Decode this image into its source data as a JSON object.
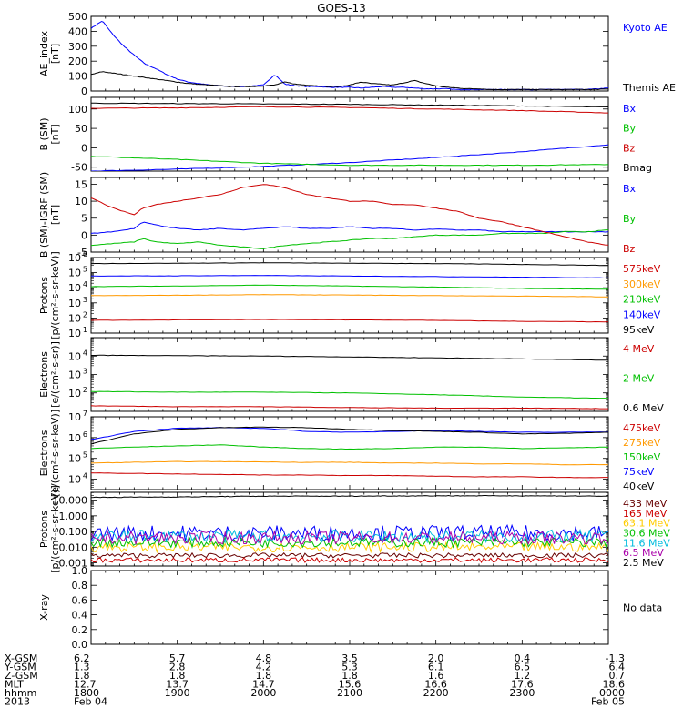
{
  "title": "GOES-13",
  "x_axis_labels": {
    "rows": [
      {
        "label": "X-GSM",
        "values": [
          "6.2",
          "5.7",
          "4.8",
          "3.5",
          "2.0",
          "0.4",
          "-1.3"
        ]
      },
      {
        "label": "Y-GSM",
        "values": [
          "1.3",
          "2.8",
          "4.2",
          "5.3",
          "6.1",
          "6.5",
          "6.4"
        ]
      },
      {
        "label": "Z-GSM",
        "values": [
          "1.8",
          "1.8",
          "1.8",
          "1.8",
          "1.6",
          "1.2",
          "0.7"
        ]
      },
      {
        "label": "MLT",
        "values": [
          "12.7",
          "13.7",
          "14.7",
          "15.6",
          "16.6",
          "17.6",
          "18.6"
        ]
      },
      {
        "label": "hhmm",
        "values": [
          "1800",
          "1900",
          "2000",
          "2100",
          "2200",
          "2300",
          "0000"
        ]
      }
    ],
    "year": "2013",
    "date_start": "Feb 04",
    "date_end": "Feb 05"
  },
  "chart_data": [
    {
      "type": "line",
      "ylabel": [
        "AE_index",
        "[nT]"
      ],
      "ylim": [
        0,
        500
      ],
      "yticks": [
        "500",
        "400",
        "300",
        "200",
        "100",
        "0"
      ],
      "x_hours": [
        0,
        0.13,
        0.25,
        0.38,
        0.5,
        0.63,
        0.75,
        0.88,
        1,
        1.13,
        1.25,
        1.38,
        1.5,
        1.63,
        1.75,
        1.88,
        2,
        2.13,
        2.25,
        2.38,
        2.5,
        2.63,
        2.75,
        2.88,
        3,
        3.13,
        3.25,
        3.38,
        3.5,
        3.63,
        3.75,
        3.88,
        4,
        4.13,
        4.25,
        4.38,
        4.5,
        4.63,
        4.75,
        4.88,
        5,
        5.13,
        5.25,
        5.38,
        5.5,
        5.63,
        5.75,
        5.88,
        6
      ],
      "series": [
        {
          "name": "Kyoto AE",
          "color": "#0000ff",
          "values": [
            420,
            470,
            380,
            300,
            240,
            180,
            150,
            110,
            80,
            60,
            50,
            40,
            35,
            30,
            30,
            35,
            40,
            110,
            45,
            35,
            30,
            30,
            25,
            25,
            25,
            20,
            25,
            30,
            25,
            25,
            20,
            15,
            15,
            15,
            10,
            10,
            10,
            10,
            10,
            10,
            10,
            10,
            10,
            10,
            10,
            10,
            10,
            15,
            20
          ]
        },
        {
          "name": "Themis AE",
          "color": "#000000",
          "values": [
            110,
            130,
            120,
            110,
            100,
            90,
            80,
            70,
            60,
            50,
            45,
            40,
            35,
            30,
            30,
            30,
            35,
            40,
            60,
            45,
            40,
            35,
            30,
            30,
            40,
            60,
            50,
            45,
            40,
            55,
            70,
            50,
            35,
            25,
            20,
            15,
            15,
            10,
            10,
            10,
            10,
            10,
            10,
            10,
            10,
            10,
            10,
            10,
            15
          ]
        }
      ]
    },
    {
      "type": "line",
      "ylabel": [
        "B (SM)",
        "[nT]"
      ],
      "ylim": [
        -60,
        130
      ],
      "yticks": [
        "100",
        "50",
        "0",
        "-50"
      ],
      "x_hours": [
        0,
        1,
        2,
        3,
        4,
        5,
        6
      ],
      "series": [
        {
          "name": "Bx",
          "color": "#0000ff",
          "values": [
            -60,
            -55,
            -48,
            -38,
            -25,
            -10,
            8
          ]
        },
        {
          "name": "By",
          "color": "#00c000",
          "values": [
            -22,
            -30,
            -40,
            -45,
            -45,
            -45,
            -43
          ]
        },
        {
          "name": "Bz",
          "color": "#cc0000",
          "values": [
            102,
            103,
            106,
            104,
            100,
            96,
            90
          ]
        },
        {
          "name": "Bmag",
          "color": "#000000",
          "values": [
            115,
            114,
            113,
            112,
            110,
            108,
            105
          ]
        }
      ]
    },
    {
      "type": "line",
      "ylabel": [
        "B (SM)-IGRF (SM)",
        "[nT]"
      ],
      "ylim": [
        -5,
        17
      ],
      "yticks": [
        "15",
        "10",
        "5",
        "0",
        "-5"
      ],
      "x_hours": [
        0,
        0.25,
        0.5,
        0.6,
        0.75,
        1,
        1.25,
        1.5,
        1.75,
        2,
        2.25,
        2.5,
        2.75,
        3,
        3.25,
        3.5,
        3.75,
        4,
        4.25,
        4.5,
        4.75,
        5,
        5.25,
        5.5,
        5.75,
        6
      ],
      "series": [
        {
          "name": "Bx",
          "color": "#0000ff",
          "values": [
            0.5,
            1,
            2,
            4,
            3,
            2,
            1.5,
            2,
            1.5,
            2,
            2.5,
            2,
            2,
            2.5,
            2,
            2,
            1.5,
            1.8,
            1.5,
            1.5,
            1,
            1,
            1,
            1,
            1,
            1
          ]
        },
        {
          "name": "By",
          "color": "#00c000",
          "values": [
            -3,
            -2.5,
            -2,
            -1,
            -2,
            -2.5,
            -2,
            -3,
            -3.5,
            -4,
            -3,
            -2.5,
            -2,
            -1.5,
            -1,
            -1,
            -0.5,
            0,
            0,
            0,
            0.5,
            0.5,
            0.5,
            1,
            1,
            1.5
          ]
        },
        {
          "name": "Bz",
          "color": "#cc0000",
          "values": [
            11,
            8,
            6,
            8,
            9,
            10,
            11,
            12,
            14,
            15,
            14,
            12,
            11,
            10,
            10,
            9,
            9,
            8,
            7,
            5,
            4,
            2.5,
            1,
            -0.5,
            -2,
            -3
          ]
        }
      ]
    },
    {
      "type": "line",
      "ylabel": [
        "Protons",
        "[p/(cm²-s-sr-keV)]"
      ],
      "log": true,
      "ylim_exp": [
        1,
        6
      ],
      "yticks_exp": [
        1,
        2,
        3,
        4,
        5,
        6
      ],
      "x_hours": [
        0,
        1,
        2,
        3,
        4,
        5,
        6
      ],
      "series": [
        {
          "name": "575keV",
          "color": "#cc0000",
          "values": [
            70.0,
            75.0,
            80.0,
            75.0,
            70.0,
            60.0,
            55.0
          ]
        },
        {
          "name": "300keV",
          "color": "#ff9900",
          "values": [
            3000.0,
            3200.0,
            3500.0,
            3300.0,
            3000.0,
            2800.0,
            2500.0
          ]
        },
        {
          "name": "210keV",
          "color": "#00c000",
          "values": [
            12000.0,
            13000.0,
            15000.0,
            13000.0,
            11000.0,
            9000.0,
            8000.0
          ]
        },
        {
          "name": "140keV",
          "color": "#0000ff",
          "values": [
            60000.0,
            62000.0,
            65000.0,
            60000.0,
            55000.0,
            50000.0,
            45000.0
          ]
        },
        {
          "name": "95keV",
          "color": "#000000",
          "values": [
            400000.0,
            420000.0,
            450000.0,
            420000.0,
            400000.0,
            350000.0,
            300000.0
          ]
        }
      ]
    },
    {
      "type": "line",
      "ylabel": [
        "Electrons",
        "[e/(cm²-s-sr)]"
      ],
      "log": true,
      "ylim_exp": [
        1,
        5
      ],
      "yticks_exp": [
        2,
        3,
        4
      ],
      "x_hours": [
        0,
        1,
        2,
        3,
        4,
        5,
        6
      ],
      "series": [
        {
          "name": "4 MeV",
          "color": "#cc0000",
          "values": [
            20.0,
            18.0,
            18.0,
            16.0,
            15.0,
            15.0,
            14.0
          ]
        },
        {
          "name": "2 MeV",
          "color": "#00c000",
          "values": [
            120.0,
            110.0,
            110.0,
            100.0,
            80.0,
            60.0,
            50.0
          ]
        },
        {
          "name": "0.6 MeV",
          "color": "#000000",
          "values": [
            11000.0,
            10500.0,
            10000.0,
            9000.0,
            8000.0,
            7000.0,
            6000.0
          ]
        }
      ]
    },
    {
      "type": "line",
      "ylabel": [
        "Electrons",
        "[e/(cm²-s-sr-keV)]"
      ],
      "log": true,
      "ylim_exp": [
        3.5,
        7
      ],
      "yticks_exp": [
        4,
        5,
        6,
        7
      ],
      "x_hours": [
        0,
        0.5,
        1,
        1.5,
        2,
        2.5,
        3,
        3.5,
        4,
        4.5,
        5,
        5.5,
        6
      ],
      "series": [
        {
          "name": "475keV",
          "color": "#cc0000",
          "values": [
            20000.0,
            19000.0,
            18000.0,
            17000.0,
            16000.0,
            16000.0,
            15000.0,
            15000.0,
            14000.0,
            13000.0,
            13000.0,
            12000.0,
            12000.0
          ]
        },
        {
          "name": "275keV",
          "color": "#ff9900",
          "values": [
            60000.0,
            65000.0,
            70000.0,
            70000.0,
            68000.0,
            65000.0,
            65000.0,
            60000.0,
            60000.0,
            55000.0,
            55000.0,
            50000.0,
            50000.0
          ]
        },
        {
          "name": "150keV",
          "color": "#00c000",
          "values": [
            300000.0,
            350000.0,
            400000.0,
            450000.0,
            350000.0,
            300000.0,
            280000.0,
            300000.0,
            350000.0,
            350000.0,
            300000.0,
            320000.0,
            350000.0
          ]
        },
        {
          "name": "75keV",
          "color": "#0000ff",
          "values": [
            800000.0,
            2000000.0,
            2800000.0,
            3000000.0,
            2800000.0,
            2000000.0,
            1800000.0,
            2000000.0,
            2200000.0,
            2000000.0,
            1800000.0,
            1800000.0,
            1900000.0
          ]
        },
        {
          "name": "40keV",
          "color": "#000000",
          "values": [
            500000.0,
            1500000.0,
            2500000.0,
            3000000.0,
            3200000.0,
            3000000.0,
            2500000.0,
            2200000.0,
            2000000.0,
            1800000.0,
            1500000.0,
            1600000.0,
            1800000.0
          ]
        }
      ]
    },
    {
      "type": "line",
      "ylabel": [
        "Protons",
        "[p/(cm²-s-sr-keV)]"
      ],
      "log": true,
      "ylim_exp": [
        -3.2,
        1.5
      ],
      "yticks_exp": [
        -3,
        -2,
        -1,
        0,
        1
      ],
      "ytick_labels": [
        "0.001",
        "0.010",
        "0.100",
        "1.000",
        "10.000"
      ],
      "x_hours": [
        0,
        1,
        2,
        3,
        4,
        5,
        6
      ],
      "noisy": true,
      "series": [
        {
          "name": "433 MeV",
          "color": "#660000",
          "values": [
            0.003,
            0.003,
            0.003,
            0.003,
            0.003,
            0.003,
            0.003
          ],
          "noise": 0.15
        },
        {
          "name": "165 MeV",
          "color": "#cc0000",
          "values": [
            0.0015,
            0.0015,
            0.0015,
            0.0015,
            0.0015,
            0.0015,
            0.0015
          ],
          "noise": 0.15
        },
        {
          "name": "63.1 MeV",
          "color": "#ffcc00",
          "values": [
            0.01,
            0.01,
            0.01,
            0.01,
            0.01,
            0.01,
            0.01
          ],
          "noise": 0.3
        },
        {
          "name": "30.6 MeV",
          "color": "#00c000",
          "values": [
            0.02,
            0.02,
            0.02,
            0.02,
            0.02,
            0.02,
            0.02
          ],
          "noise": 0.3
        },
        {
          "name": "11.6 MeV",
          "color": "#00bbdd",
          "values": [
            0.05,
            0.05,
            0.05,
            0.05,
            0.05,
            0.05,
            0.05
          ],
          "noise": 0.4
        },
        {
          "name": "6.5 MeV",
          "color": "#aa00aa",
          "values": [
            0.04,
            0.04,
            0.04,
            0.04,
            0.04,
            0.04,
            0.04
          ],
          "noise": 0.4
        },
        {
          "name": "2.5 MeV",
          "color": "#000000",
          "values": [
            15,
            16,
            18,
            18,
            19,
            19,
            18
          ],
          "noise": 0.02
        }
      ],
      "extra_noise_series": {
        "color": "#0000ff",
        "values": [
          0.08,
          0.08,
          0.08,
          0.08,
          0.08,
          0.08,
          0.08
        ],
        "noise": 0.5
      }
    },
    {
      "type": "line",
      "ylabel": [
        "X-ray",
        ""
      ],
      "ylim": [
        0,
        1
      ],
      "yticks": [
        "1.0",
        "0.8",
        "0.6",
        "0.4",
        "0.2",
        "0.0"
      ],
      "note": "No data",
      "series": []
    }
  ]
}
